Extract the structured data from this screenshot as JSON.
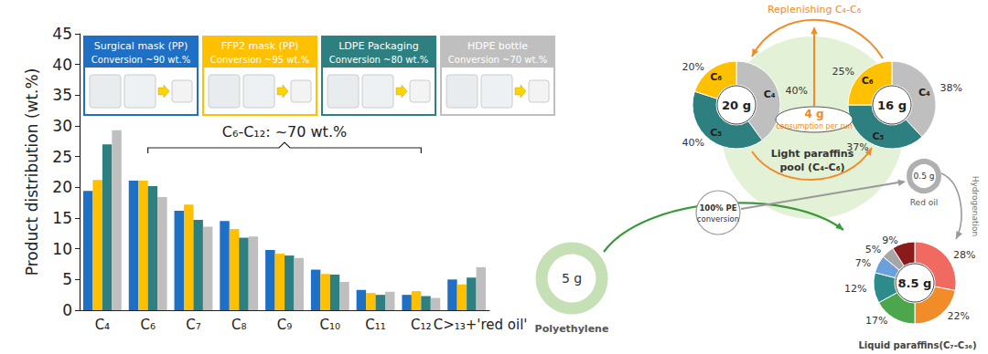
{
  "chart_data": [
    {
      "type": "bar",
      "ylabel": "Product distribution (wt.%)",
      "categories": [
        "C₄",
        "C₆",
        "C₇",
        "C₈",
        "C₉",
        "C₁₀",
        "C₁₁",
        "C₁₂",
        "C>₁₃+'red oil'"
      ],
      "series": [
        {
          "name": "Surgical mask (PP)",
          "conversion": "Conversion ~90 wt.%",
          "color": "#1f6fc4",
          "values": [
            19.4,
            21.1,
            16.2,
            14.5,
            9.8,
            6.6,
            3.3,
            2.5,
            5.0
          ]
        },
        {
          "name": "FFP2 mask (PP)",
          "conversion": "Conversion ~95 wt.%",
          "color": "#ffc000",
          "values": [
            21.2,
            21.1,
            17.2,
            13.2,
            9.2,
            5.9,
            2.8,
            3.1,
            4.2
          ]
        },
        {
          "name": "LDPE Packaging",
          "conversion": "Conversion ~80 wt.%",
          "color": "#2e8080",
          "values": [
            27.0,
            20.2,
            14.7,
            11.8,
            8.9,
            5.8,
            2.5,
            2.3,
            5.3
          ]
        },
        {
          "name": "HDPE bottle",
          "conversion": "Conversion ~70 wt.%",
          "color": "#bfbfbf",
          "values": [
            29.3,
            18.4,
            13.6,
            12.0,
            8.5,
            4.6,
            3.0,
            2.0,
            7.0
          ]
        }
      ],
      "ylim": [
        0,
        45
      ],
      "yticks": [
        0,
        5,
        10,
        15,
        20,
        25,
        30,
        35,
        40,
        45
      ],
      "grid": false,
      "legend": "top",
      "annotations": [
        {
          "text": "C₆-C₁₂: ~70 wt.%",
          "from": "C₆",
          "to": "C₁₂"
        }
      ]
    },
    {
      "type": "pie",
      "title": "20 g",
      "categories": [
        "C₄",
        "C₅",
        "C₆"
      ],
      "values": [
        40,
        40,
        20
      ],
      "value_labels": [
        "40%",
        "40%",
        "20%"
      ],
      "colors": [
        "#bfbfbf",
        "#2e8080",
        "#ffc000"
      ],
      "data_labels": true
    },
    {
      "type": "pie",
      "title": "16 g",
      "categories": [
        "C₄",
        "C₅",
        "C₆"
      ],
      "values": [
        38,
        37,
        25
      ],
      "value_labels": [
        "38%",
        "37%",
        "25%"
      ],
      "colors": [
        "#bfbfbf",
        "#2e8080",
        "#ffc000"
      ],
      "data_labels": true
    },
    {
      "type": "pie",
      "title": "8.5 g",
      "subtitle": "Liquid paraffins(C₇-C₃₆)",
      "categories": [
        null,
        null,
        null,
        null,
        null,
        null,
        null
      ],
      "values": [
        28,
        22,
        17,
        12,
        7,
        5,
        9
      ],
      "value_labels": [
        "28%",
        "22%",
        "17%",
        "12%",
        "7%",
        "5%",
        "9%"
      ],
      "colors": [
        "#f06a62",
        "#f28c28",
        "#4ca64c",
        "#2e8b8b",
        "#6ca0dc",
        "#a6a6a6",
        "#8b1a1a"
      ],
      "data_labels": true
    }
  ],
  "diagram": {
    "pool_label": [
      "Light paraffins",
      "pool (C₄-C₆)"
    ],
    "replenish_label": "Replenishing C₄-C₆",
    "consumption": {
      "amount": "4 g",
      "label": "consumption per run"
    },
    "feed": {
      "amount": "5 g",
      "label": "Polyethylene"
    },
    "conversion_label": [
      "100% PE",
      "conversion"
    ],
    "red_oil": {
      "amount": "0.5 g",
      "label": "Red oil"
    },
    "hydrogenation_label": "Hydrogenation"
  }
}
